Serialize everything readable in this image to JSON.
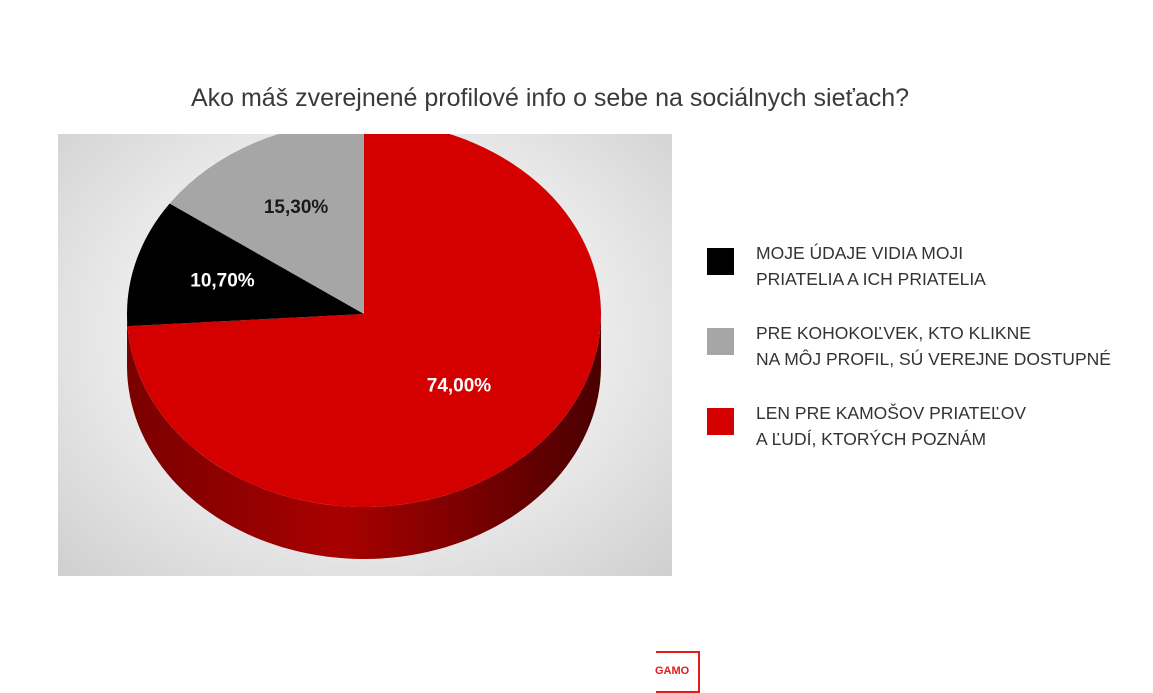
{
  "chart_data": {
    "type": "pie",
    "title": "Ako máš zverejnené profilové info o sebe na sociálnych sieťach?",
    "slices": [
      {
        "label_lines": [
          "MOJE ÚDAJE VIDIA MOJI",
          "PRIATELIA A ICH PRIATELIA"
        ],
        "value": 10.7,
        "display": "10,70%",
        "color": "#000000"
      },
      {
        "label_lines": [
          "PRE KOHOKOĽVEK, KTO KLIKNE",
          "NA MÔJ PROFIL, SÚ VEREJNE DOSTUPNÉ"
        ],
        "value": 15.3,
        "display": "15,30%",
        "color": "#a6a6a6"
      },
      {
        "label_lines": [
          "LEN PRE KAMOŠOV PRIATEĽOV",
          "A ĽUDÍ, KTORÝCH POZNÁM"
        ],
        "value": 74.0,
        "display": "74,00%",
        "color": "#d40000"
      }
    ],
    "legend_position": "right",
    "style": "3d"
  },
  "logo": {
    "text": "GAMO",
    "color": "#e21b1b"
  }
}
